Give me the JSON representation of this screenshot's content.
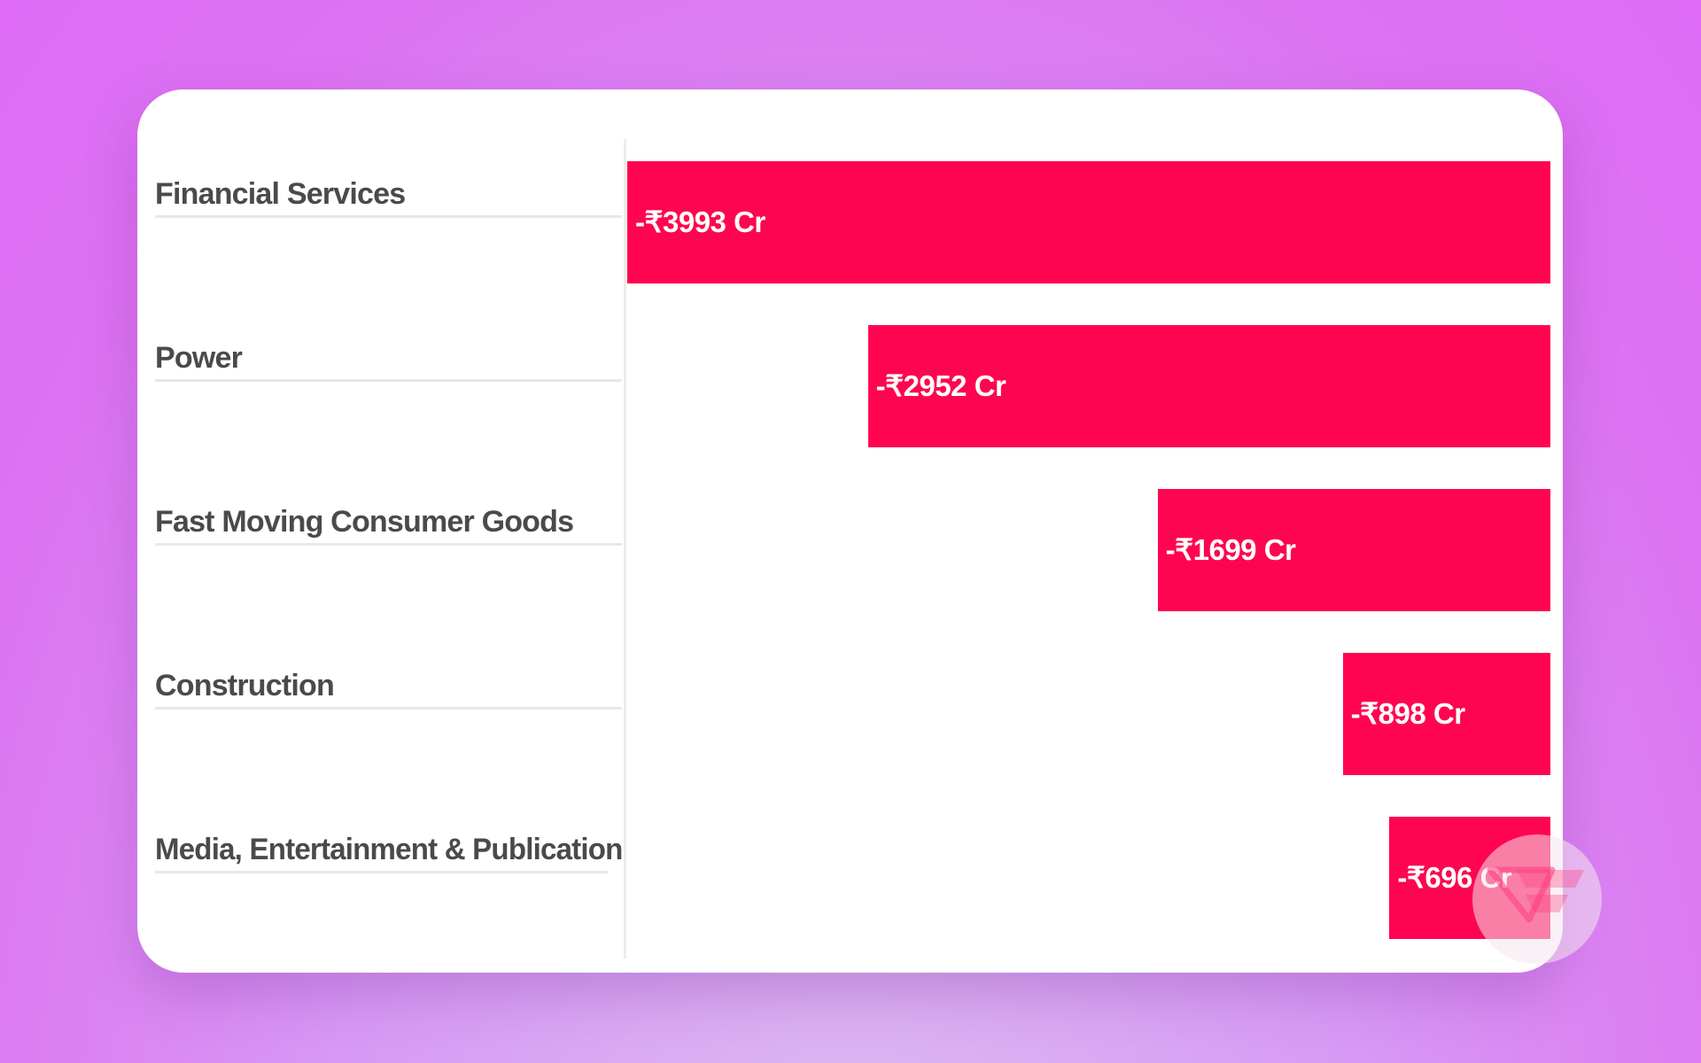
{
  "chart_data": {
    "type": "bar",
    "orientation": "horizontal",
    "categories": [
      "Financial Services",
      "Power",
      "Fast Moving Consumer Goods",
      "Construction",
      "Media, Entertainment & Publication"
    ],
    "values": [
      -3993,
      -2952,
      -1699,
      -898,
      -696
    ],
    "data_labels": [
      "-₹3993 Cr",
      "-₹2952 Cr",
      "-₹1699 Cr",
      "-₹898 Cr",
      "-₹696 Cr"
    ],
    "xlim": [
      -3993,
      0
    ],
    "grid": false,
    "legend": "none",
    "title": "",
    "xlabel": "",
    "ylabel": ""
  },
  "colors": {
    "bar": "#ff0450",
    "label_text": "#4a4a4a",
    "card": "#ffffff"
  },
  "watermark": {
    "icon": "brand-logo-watermark-icon"
  }
}
